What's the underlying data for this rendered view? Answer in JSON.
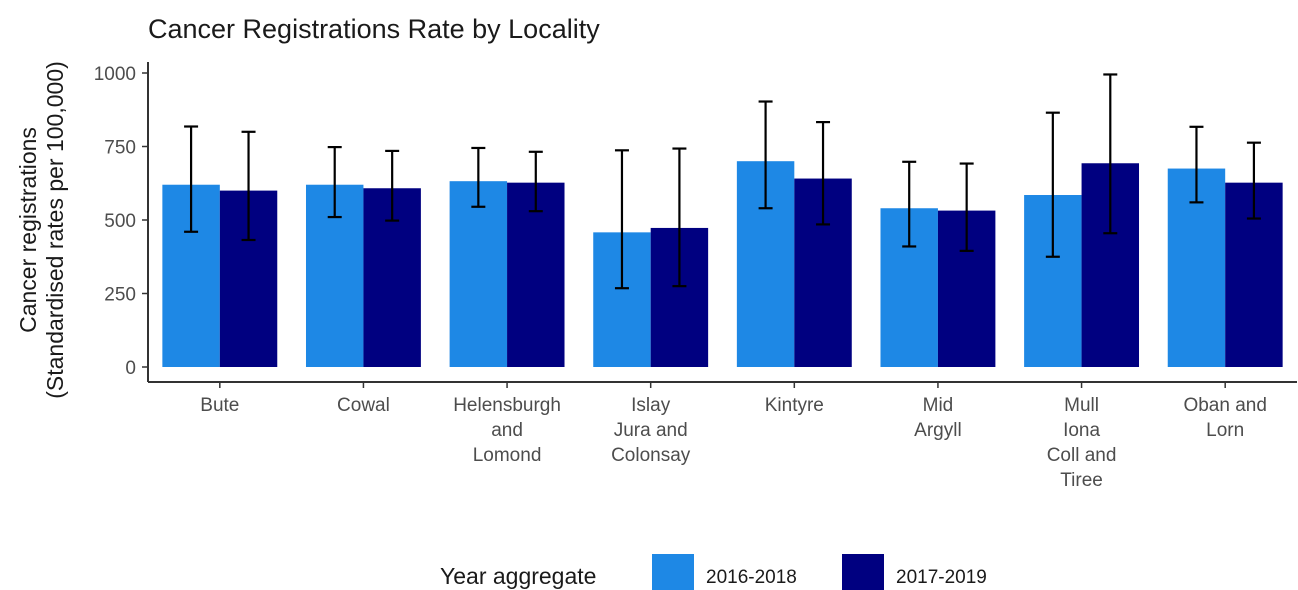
{
  "chart_data": {
    "type": "bar",
    "title": "Cancer Registrations Rate by Locality",
    "ylabel_lines": [
      "Cancer registrations",
      "(Standardised rates per 100,000)"
    ],
    "xlabel": "",
    "ylim": [
      0,
      1000
    ],
    "yticks": [
      0,
      250,
      500,
      750,
      1000
    ],
    "categories": [
      [
        "Bute"
      ],
      [
        "Cowal"
      ],
      [
        "Helensburgh",
        "and",
        "Lomond"
      ],
      [
        "Islay",
        "Jura and",
        "Colonsay"
      ],
      [
        "Kintyre"
      ],
      [
        "Mid",
        "Argyll"
      ],
      [
        "Mull",
        "Iona",
        "Coll and",
        "Tiree"
      ],
      [
        "Oban and",
        "Lorn"
      ]
    ],
    "series": [
      {
        "name": "2016-2018",
        "color": "#1e88e5",
        "values": [
          620,
          620,
          632,
          458,
          700,
          540,
          585,
          675
        ],
        "lower": [
          460,
          510,
          545,
          268,
          540,
          410,
          375,
          560
        ],
        "upper": [
          818,
          748,
          745,
          737,
          903,
          698,
          865,
          817
        ]
      },
      {
        "name": "2017-2019",
        "color": "#000080",
        "values": [
          600,
          608,
          627,
          473,
          641,
          532,
          693,
          627
        ],
        "lower": [
          432,
          498,
          530,
          275,
          485,
          395,
          455,
          505
        ],
        "upper": [
          800,
          735,
          732,
          743,
          833,
          692,
          995,
          763
        ]
      }
    ],
    "grid": false,
    "error_bars": true,
    "legend": {
      "title": "Year aggregate",
      "position": "bottom",
      "entries": [
        "2016-2018",
        "2017-2019"
      ]
    }
  }
}
